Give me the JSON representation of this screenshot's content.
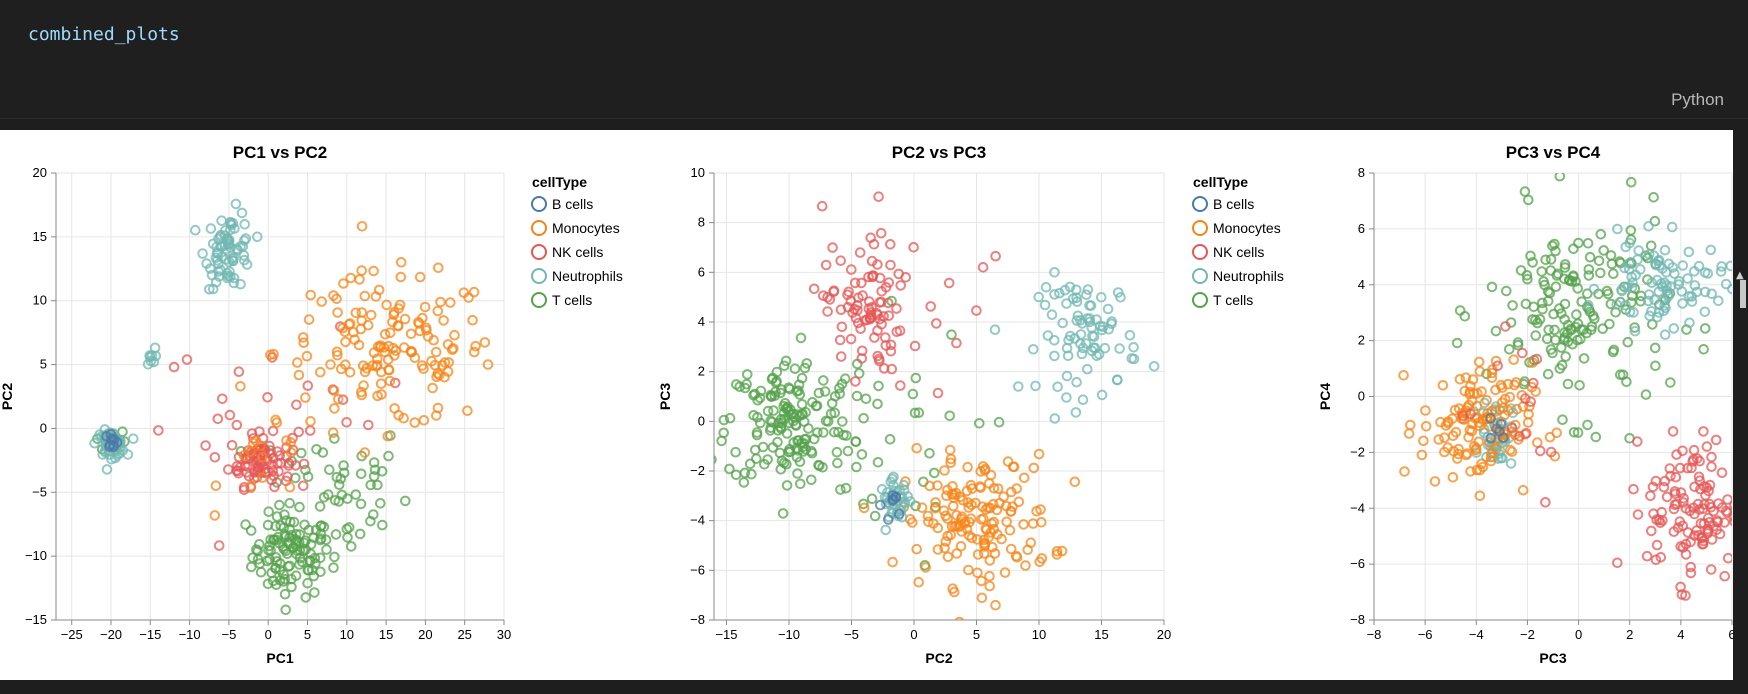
{
  "cell": {
    "code": "combined_plots",
    "language": "Python"
  },
  "legend": {
    "title": "cellType",
    "items": [
      {
        "label": "B cells",
        "color": "#4c78a8"
      },
      {
        "label": "Monocytes",
        "color": "#f58518"
      },
      {
        "label": "NK cells",
        "color": "#e45756"
      },
      {
        "label": "Neutrophils",
        "color": "#72b7b2"
      },
      {
        "label": "T cells",
        "color": "#54a24b"
      }
    ]
  },
  "chart_data": [
    {
      "type": "scatter",
      "title": "PC1 vs PC2",
      "xlabel": "PC1",
      "ylabel": "PC2",
      "xlim": [
        -27,
        30
      ],
      "ylim": [
        -15,
        20
      ],
      "xticks": [
        -25,
        -20,
        -15,
        -10,
        -5,
        0,
        5,
        10,
        15,
        20,
        25,
        30
      ],
      "yticks": [
        -15,
        -10,
        -5,
        0,
        5,
        10,
        15,
        20
      ],
      "clusters": [
        {
          "series": "T cells",
          "cx": 3,
          "cy": -10,
          "sx": 2.5,
          "sy": 1.6,
          "n": 100
        },
        {
          "series": "T cells",
          "cx": 8,
          "cy": -5,
          "sx": 5,
          "sy": 3,
          "n": 60
        },
        {
          "series": "T cells",
          "cx": -20,
          "cy": -1,
          "sx": 1,
          "sy": 0.5,
          "n": 15
        },
        {
          "series": "NK cells",
          "cx": -1,
          "cy": -2.5,
          "sx": 2,
          "sy": 1,
          "n": 80
        },
        {
          "series": "NK cells",
          "cx": 2,
          "cy": 1,
          "sx": 8,
          "sy": 3,
          "n": 25
        },
        {
          "series": "Monocytes",
          "cx": 15,
          "cy": 6,
          "sx": 7,
          "sy": 3,
          "n": 150
        },
        {
          "series": "Monocytes",
          "cx": 0,
          "cy": -3,
          "sx": 3,
          "sy": 1.5,
          "n": 15
        },
        {
          "series": "Neutrophils",
          "cx": -5,
          "cy": 14,
          "sx": 1.5,
          "sy": 1.5,
          "n": 70
        },
        {
          "series": "Neutrophils",
          "cx": -20,
          "cy": -1.2,
          "sx": 0.9,
          "sy": 0.5,
          "n": 50
        },
        {
          "series": "Neutrophils",
          "cx": -15,
          "cy": 5.5,
          "sx": 0.3,
          "sy": 0.4,
          "n": 8
        },
        {
          "series": "B cells",
          "cx": -20,
          "cy": -1,
          "sx": 0.6,
          "sy": 0.4,
          "n": 10
        }
      ]
    },
    {
      "type": "scatter",
      "title": "PC2 vs PC3",
      "xlabel": "PC2",
      "ylabel": "PC3",
      "xlim": [
        -16,
        20
      ],
      "ylim": [
        -8,
        10
      ],
      "xticks": [
        -15,
        -10,
        -5,
        0,
        5,
        10,
        15,
        20
      ],
      "yticks": [
        -8,
        -6,
        -4,
        -2,
        0,
        2,
        4,
        6,
        8,
        10
      ],
      "clusters": [
        {
          "series": "T cells",
          "cx": -10,
          "cy": 0,
          "sx": 2.5,
          "sy": 1.3,
          "n": 150
        },
        {
          "series": "T cells",
          "cx": -5,
          "cy": -1,
          "sx": 5,
          "sy": 2.5,
          "n": 40
        },
        {
          "series": "NK cells",
          "cx": -4,
          "cy": 4.5,
          "sx": 1.5,
          "sy": 1.3,
          "n": 80
        },
        {
          "series": "NK cells",
          "cx": 1,
          "cy": 5,
          "sx": 4,
          "sy": 2.5,
          "n": 20
        },
        {
          "series": "Monocytes",
          "cx": 5,
          "cy": -4,
          "sx": 3,
          "sy": 1.3,
          "n": 150
        },
        {
          "series": "Neutrophils",
          "cx": 14,
          "cy": 3.5,
          "sx": 2,
          "sy": 1.2,
          "n": 80
        },
        {
          "series": "Neutrophils",
          "cx": -1.5,
          "cy": -3.2,
          "sx": 0.6,
          "sy": 0.4,
          "n": 40
        },
        {
          "series": "B cells",
          "cx": -1.5,
          "cy": -3.3,
          "sx": 0.5,
          "sy": 0.3,
          "n": 8
        }
      ]
    },
    {
      "type": "scatter",
      "title": "PC3 vs PC4",
      "xlabel": "PC3",
      "ylabel": "PC4",
      "xlim": [
        -8,
        6
      ],
      "ylim": [
        -8,
        8
      ],
      "xticks": [
        -8,
        -6,
        -4,
        -2,
        0,
        2,
        4,
        6
      ],
      "yticks": [
        -8,
        -6,
        -4,
        -2,
        0,
        2,
        4,
        6,
        8
      ],
      "clusters": [
        {
          "series": "T cells",
          "cx": 0,
          "cy": 3,
          "sx": 1.8,
          "sy": 1.8,
          "n": 170
        },
        {
          "series": "Neutrophils",
          "cx": 3.3,
          "cy": 4,
          "sx": 1.2,
          "sy": 0.8,
          "n": 90
        },
        {
          "series": "Neutrophils",
          "cx": -3.2,
          "cy": -1.3,
          "sx": 0.3,
          "sy": 0.6,
          "n": 40
        },
        {
          "series": "Monocytes",
          "cx": -4,
          "cy": -1,
          "sx": 1.1,
          "sy": 1.1,
          "n": 130
        },
        {
          "series": "NK cells",
          "cx": 4.5,
          "cy": -4,
          "sx": 0.9,
          "sy": 1.3,
          "n": 120
        },
        {
          "series": "NK cells",
          "cx": -3,
          "cy": 0,
          "sx": 1.5,
          "sy": 2,
          "n": 15
        },
        {
          "series": "B cells",
          "cx": -3.2,
          "cy": -1.2,
          "sx": 0.3,
          "sy": 0.4,
          "n": 6
        }
      ]
    }
  ]
}
